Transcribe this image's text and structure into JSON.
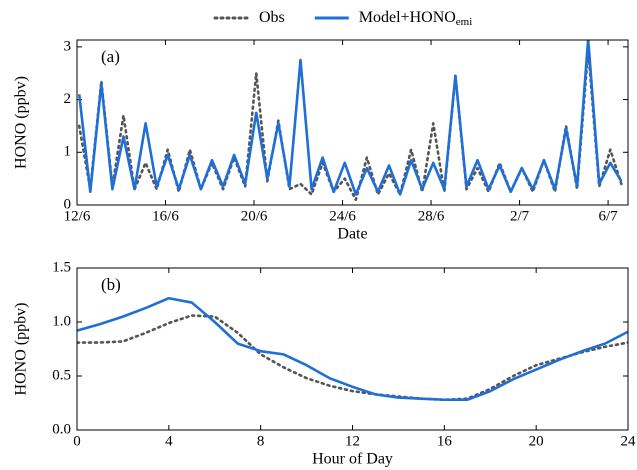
{
  "chart_data": [
    {
      "type": "line",
      "panel_label": "(a)",
      "x_label": "Date",
      "y_label": "HONO (ppbv)",
      "x": [
        0.1,
        0.6,
        1.1,
        1.6,
        2.1,
        2.6,
        3.1,
        3.6,
        4.1,
        4.6,
        5.1,
        5.6,
        6.1,
        6.6,
        7.1,
        7.6,
        8.1,
        8.6,
        9.1,
        9.6,
        10.1,
        10.6,
        11.1,
        11.6,
        12.1,
        12.6,
        13.1,
        13.6,
        14.1,
        14.6,
        15.1,
        15.6,
        16.1,
        16.6,
        17.1,
        17.6,
        18.1,
        18.6,
        19.1,
        19.6,
        20.1,
        20.6,
        21.1,
        21.6,
        22.1,
        22.6,
        23.1,
        23.6,
        24.1,
        24.6
      ],
      "series": [
        {
          "name": "Obs",
          "color": "#555555",
          "dash": "dotted",
          "values": [
            1.5,
            0.3,
            2.35,
            0.35,
            1.7,
            0.3,
            0.8,
            0.3,
            1.05,
            0.25,
            1.05,
            0.3,
            0.8,
            0.3,
            0.9,
            0.35,
            2.5,
            0.45,
            1.6,
            0.3,
            0.4,
            0.2,
            0.8,
            0.25,
            0.5,
            0.1,
            0.9,
            0.2,
            0.6,
            0.2,
            1.05,
            0.25,
            1.55,
            0.25,
            2.45,
            0.3,
            0.7,
            0.25,
            0.8,
            0.25,
            0.7,
            0.25,
            0.85,
            0.25,
            1.5,
            0.3,
            2.95,
            0.35,
            1.05,
            0.4
          ]
        },
        {
          "name": "Model+HONO",
          "name_subscript": "emi",
          "color": "#1f6fd6",
          "dash": "solid",
          "values": [
            2.1,
            0.25,
            2.3,
            0.3,
            1.3,
            0.3,
            1.55,
            0.35,
            0.95,
            0.3,
            0.95,
            0.3,
            0.85,
            0.35,
            0.95,
            0.4,
            1.75,
            0.5,
            1.55,
            0.35,
            2.75,
            0.3,
            0.9,
            0.25,
            0.8,
            0.2,
            0.7,
            0.25,
            0.75,
            0.2,
            0.85,
            0.3,
            0.8,
            0.3,
            2.45,
            0.35,
            0.85,
            0.3,
            0.75,
            0.25,
            0.7,
            0.3,
            0.85,
            0.3,
            1.45,
            0.35,
            3.15,
            0.4,
            0.8,
            0.45
          ]
        }
      ],
      "xlim": [
        0,
        24.9
      ],
      "xticks": [
        {
          "value": 0,
          "label": "12/6"
        },
        {
          "value": 4,
          "label": "16/6"
        },
        {
          "value": 8,
          "label": "20/6"
        },
        {
          "value": 12,
          "label": "24/6"
        },
        {
          "value": 16,
          "label": "28/6"
        },
        {
          "value": 20,
          "label": "2/7"
        },
        {
          "value": 24,
          "label": "6/7"
        }
      ],
      "ylim": [
        0,
        3.13
      ],
      "yticks": [
        0,
        1,
        2,
        3
      ]
    },
    {
      "type": "line",
      "panel_label": "(b)",
      "x_label": "Hour of Day",
      "y_label": "HONO (ppbv)",
      "x": [
        0,
        1,
        2,
        3,
        4,
        5,
        6,
        7,
        8,
        9,
        10,
        11,
        12,
        13,
        14,
        15,
        16,
        17,
        18,
        19,
        20,
        21,
        22,
        23,
        24
      ],
      "series": [
        {
          "color": "#555555",
          "dash": "dotted",
          "values": [
            0.81,
            0.81,
            0.82,
            0.9,
            0.99,
            1.06,
            1.05,
            0.9,
            0.7,
            0.58,
            0.48,
            0.41,
            0.36,
            0.33,
            0.31,
            0.29,
            0.28,
            0.29,
            0.38,
            0.5,
            0.6,
            0.66,
            0.72,
            0.77,
            0.81
          ]
        },
        {
          "color": "#1f6fd6",
          "dash": "solid",
          "values": [
            0.92,
            0.98,
            1.05,
            1.13,
            1.22,
            1.18,
            1.0,
            0.8,
            0.73,
            0.7,
            0.6,
            0.48,
            0.4,
            0.33,
            0.3,
            0.29,
            0.28,
            0.28,
            0.36,
            0.47,
            0.56,
            0.65,
            0.73,
            0.8,
            0.91
          ]
        }
      ],
      "xlim": [
        0,
        24
      ],
      "xticks": [
        0,
        4,
        8,
        12,
        16,
        20,
        24
      ],
      "ylim": [
        0,
        1.5
      ],
      "yticks": [
        {
          "value": 0,
          "label": "0.0"
        },
        {
          "value": 0.5,
          "label": "0.5"
        },
        {
          "value": 1,
          "label": "1.0"
        },
        {
          "value": 1.5,
          "label": "1.5"
        }
      ]
    }
  ]
}
